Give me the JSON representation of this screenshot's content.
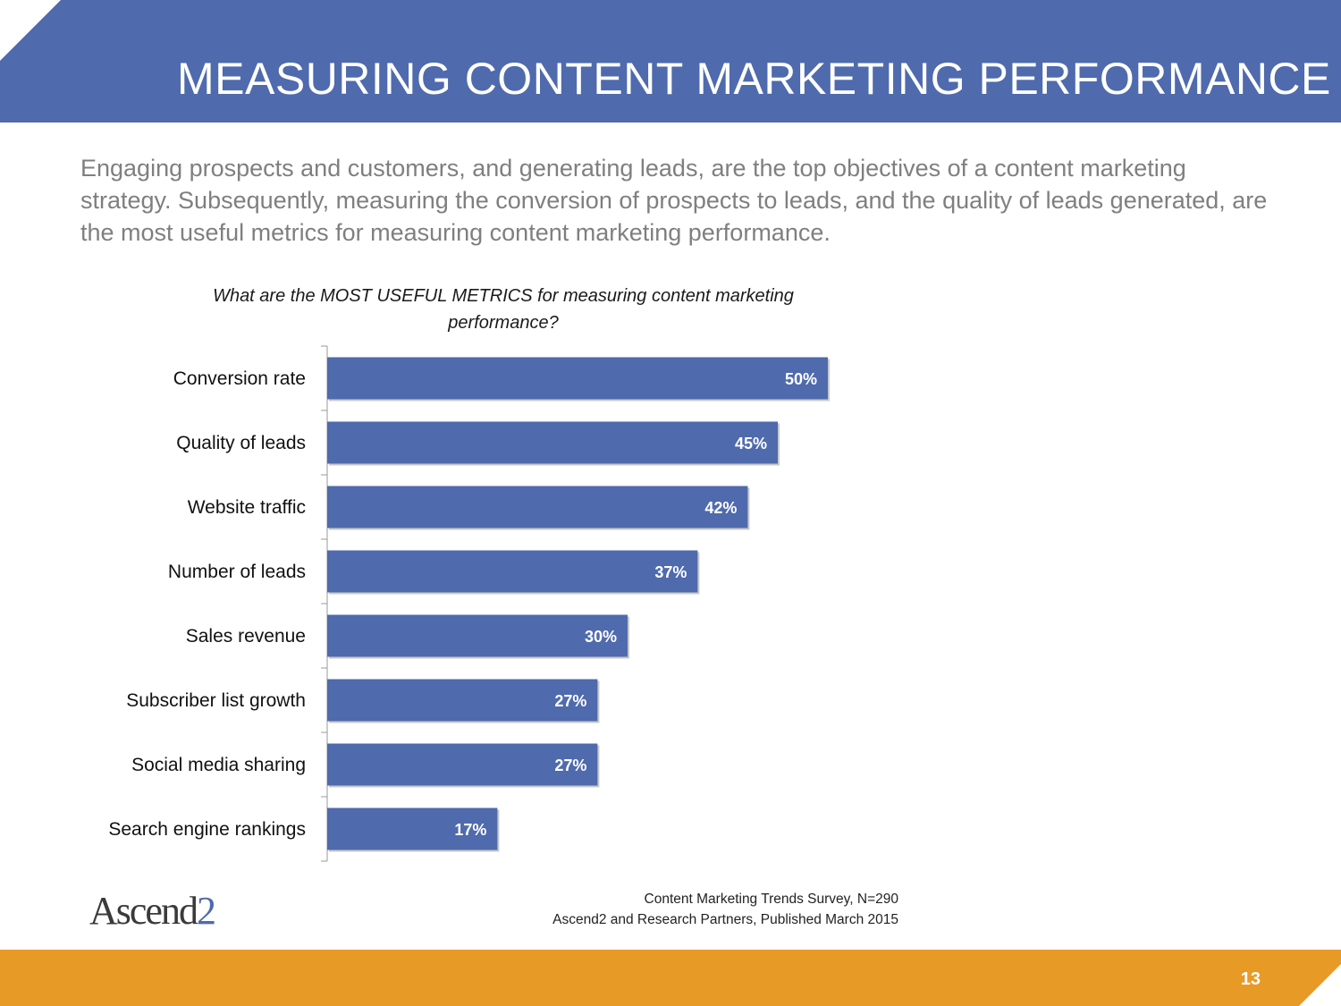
{
  "slide": {
    "title": "MEASURING CONTENT MARKETING PERFORMANCE",
    "intro": "Engaging prospects and customers, and generating leads, are the top objectives of a content marketing strategy. Subsequently, measuring the conversion of prospects to leads, and the quality of leads generated, are the most useful metrics for measuring content marketing performance.",
    "page_number": "13"
  },
  "logo": {
    "text_main": "Ascend",
    "text_accent": "2"
  },
  "source": {
    "line1": "Content Marketing Trends Survey, N=290",
    "line2": "Ascend2 and Research Partners, Published March 2015"
  },
  "colors": {
    "header": "#4f6aad",
    "bar": "#4f6aad",
    "footer": "#e89a27",
    "intro_text": "#7f7f7f"
  },
  "chart_data": {
    "type": "bar",
    "orientation": "horizontal",
    "title": "What are the MOST USEFUL METRICS for measuring content marketing performance?",
    "categories": [
      "Conversion rate",
      "Quality of leads",
      "Website traffic",
      "Number of leads",
      "Sales revenue",
      "Subscriber list growth",
      "Social media sharing",
      "Search engine rankings"
    ],
    "values": [
      50,
      45,
      42,
      37,
      30,
      27,
      27,
      17
    ],
    "value_labels": [
      "50%",
      "45%",
      "42%",
      "37%",
      "30%",
      "27%",
      "27%",
      "17%"
    ],
    "unit": "%",
    "xlim": [
      0,
      100
    ],
    "grid": false,
    "legend": "none"
  }
}
